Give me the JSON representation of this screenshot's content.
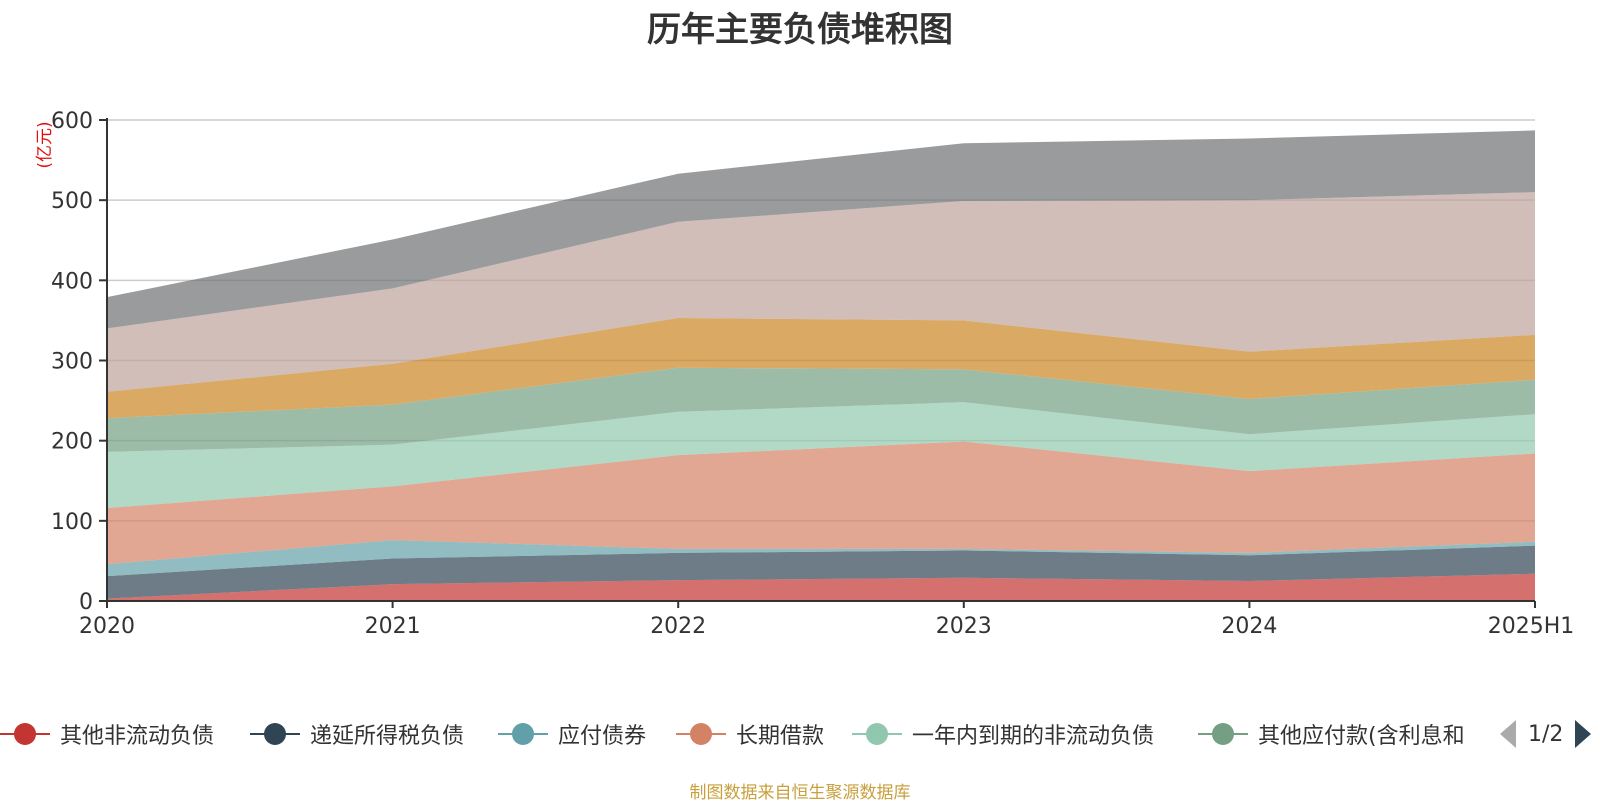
{
  "title": "历年主要负债堆积图",
  "footer": "制图数据来自恒生聚源数据库",
  "pager": {
    "text": "1/2"
  },
  "legend_page_count": 6,
  "chart_data": {
    "type": "area",
    "stacked": true,
    "title": "历年主要负债堆积图",
    "ylabel": "(亿元)",
    "ylim": [
      0,
      600
    ],
    "yticks": [
      0,
      100,
      200,
      300,
      400,
      500,
      600
    ],
    "grid": true,
    "legend_position": "bottom",
    "categories": [
      "2020",
      "2021",
      "2022",
      "2023",
      "2024",
      "2025H1"
    ],
    "series": [
      {
        "name": "其他非流动负债",
        "color": "#c23531",
        "values": [
          3,
          21,
          26,
          29,
          25,
          34
        ]
      },
      {
        "name": "递延所得税负债",
        "color": "#2f4554",
        "values": [
          28,
          32,
          34,
          34,
          32,
          35
        ]
      },
      {
        "name": "应付债券",
        "color": "#61a0a8",
        "values": [
          15,
          23,
          5,
          2,
          3,
          5
        ]
      },
      {
        "name": "长期借款",
        "color": "#d48265",
        "values": [
          70,
          67,
          117,
          134,
          102,
          110
        ]
      },
      {
        "name": "一年内到期的非流动负债",
        "color": "#91c7ae",
        "values": [
          70,
          52,
          54,
          49,
          46,
          49
        ]
      },
      {
        "name": "其他应付款(含利息和",
        "color": "#749f83",
        "values": [
          42,
          50,
          55,
          41,
          44,
          43
        ]
      },
      {
        "name": "",
        "color": "#ca8622",
        "values": [
          33,
          51,
          62,
          61,
          59,
          56
        ]
      },
      {
        "name": "",
        "color": "#bda29a",
        "values": [
          79,
          94,
          120,
          149,
          189,
          178
        ]
      },
      {
        "name": "",
        "color": "#6e7074",
        "values": [
          39,
          61,
          60,
          72,
          77,
          77
        ]
      }
    ]
  }
}
